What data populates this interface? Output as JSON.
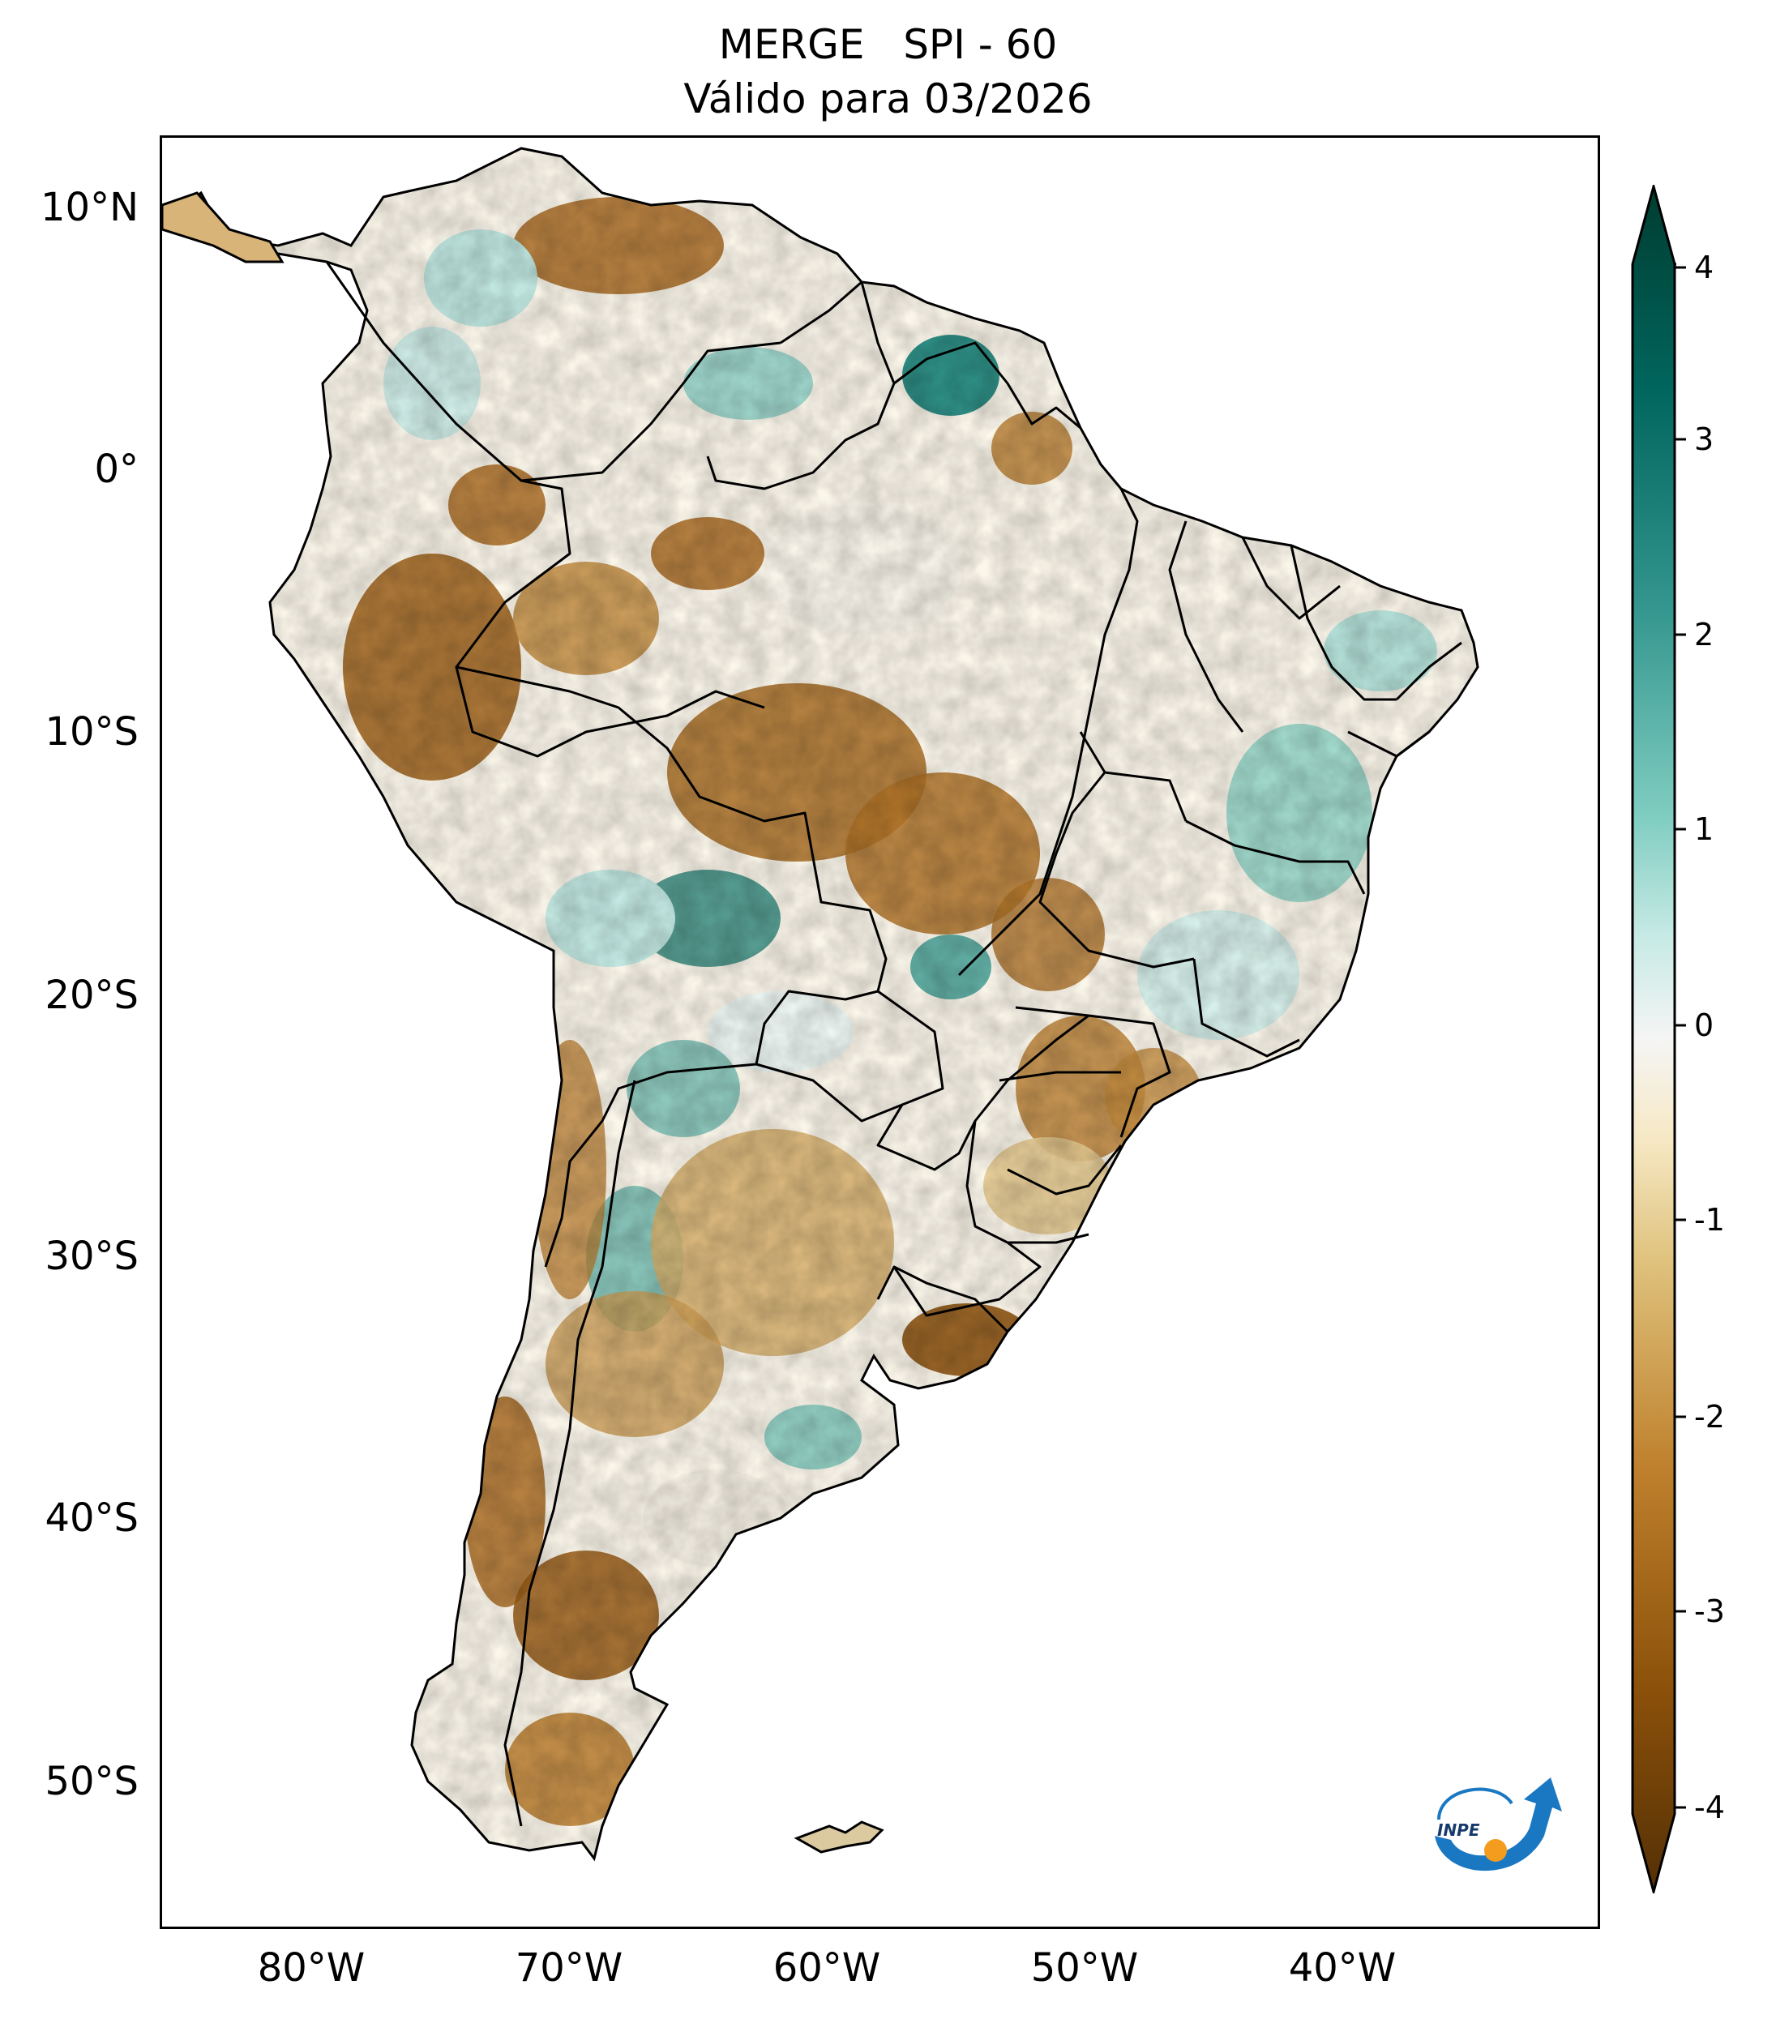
{
  "title": {
    "line1": "MERGE   SPI - 60",
    "line2": "Válido para 03/2026"
  },
  "map": {
    "lat_ticks": [
      "10°N",
      "0°",
      "10°S",
      "20°S",
      "30°S",
      "40°S",
      "50°S"
    ],
    "lon_ticks": [
      "80°W",
      "70°W",
      "60°W",
      "50°W",
      "40°W"
    ],
    "extent": {
      "lon_min": -85,
      "lon_max": -29,
      "lat_min": -56,
      "lat_max": 13
    }
  },
  "colorbar": {
    "ticks": [
      "4",
      "3",
      "2",
      "1",
      "0",
      "-1",
      "-2",
      "-3",
      "-4"
    ],
    "range": [
      -4,
      4
    ],
    "colors": {
      "dry_extreme": "#543005",
      "dry_strong": "#8c510a",
      "dry_moderate": "#bf812d",
      "dry_mild": "#dfc27d",
      "dry_slight": "#f6e8c3",
      "neutral": "#f5f5f5",
      "wet_slight": "#c7eae5",
      "wet_mild": "#80cdc1",
      "wet_moderate": "#35978f",
      "wet_strong": "#01665e",
      "wet_extreme": "#003c30"
    }
  },
  "logo": {
    "text": "INPE",
    "colors": {
      "arrow": "#1a78c2",
      "dot": "#f39c1e"
    }
  }
}
